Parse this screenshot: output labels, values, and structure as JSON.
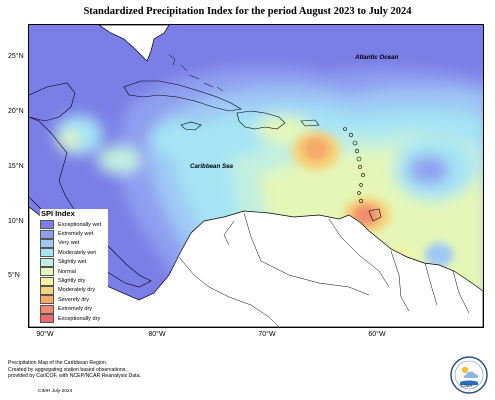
{
  "title": "Standardized Precipitation Index for the period August 2023 to July 2024",
  "latitude_ticks": [
    "25°N",
    "20°N",
    "15°N",
    "10°N",
    "5°N"
  ],
  "longitude_ticks": [
    "90°W",
    "80°W",
    "70°W",
    "60°W"
  ],
  "map_labels": {
    "atlantic": "Atlantic Ocean",
    "caribbean": "Caribbean Sea"
  },
  "legend": {
    "title": "SPI Index",
    "items": [
      {
        "label": "Exceptionally wet",
        "color": "#7b7ee6"
      },
      {
        "label": "Extremely wet",
        "color": "#8f9ff0"
      },
      {
        "label": "Very wet",
        "color": "#9ec8f5"
      },
      {
        "label": "Moderately wet",
        "color": "#a6e3f5"
      },
      {
        "label": "Slightly wet",
        "color": "#c2f0e0"
      },
      {
        "label": "Normal",
        "color": "#e4f7b8"
      },
      {
        "label": "Slightly dry",
        "color": "#f6f3a4"
      },
      {
        "label": "Moderately dry",
        "color": "#f7d47a"
      },
      {
        "label": "Severely dry",
        "color": "#f5a96a"
      },
      {
        "label": "Extremely dry",
        "color": "#f08a70"
      },
      {
        "label": "Exceptionally dry",
        "color": "#ee6a6a"
      }
    ]
  },
  "credit_lines": [
    "Precipitation Map of the Caribbean Region.",
    "Created by aggregating station based observations,",
    "provided by CariCOF, with NCEP/NCAR Reanalysis Data."
  ],
  "date_text": "CIMH July-2024",
  "logo_text": "CIMH"
}
